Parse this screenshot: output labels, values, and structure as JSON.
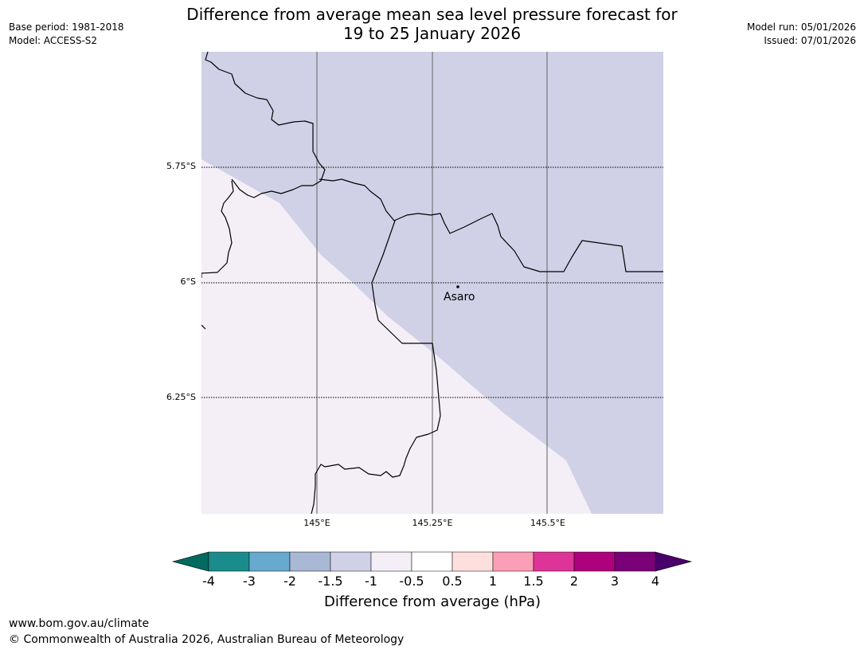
{
  "title_line1": "Difference from average mean sea level pressure forecast for",
  "title_line2": "19 to 25 January 2026",
  "base_period": "Base period: 1981-2018",
  "model": "Model: ACCESS-S2",
  "model_run": "Model run: 05/01/2026",
  "issued": "Issued: 07/01/2026",
  "lat_labels": [
    "5.75°S",
    "6°S",
    "6.25°S"
  ],
  "lon_labels": [
    "145°E",
    "145.25°E",
    "145.5°E"
  ],
  "place": {
    "name": "Asaro"
  },
  "colorbar": {
    "ticks": [
      "-4",
      "-3",
      "-2",
      "-1.5",
      "-1",
      "-0.5",
      "0.5",
      "1",
      "1.5",
      "2",
      "3",
      "4"
    ],
    "colors": [
      "#1a8c8c",
      "#67a9cf",
      "#a9b8d4",
      "#d0d1e6",
      "#f4eef6",
      "#ffffff",
      "#fde0dd",
      "#fa9fb5",
      "#dd3497",
      "#ae017e",
      "#7a0177"
    ],
    "under_color": "#04695f",
    "over_color": "#49006a",
    "label": "Difference from average (hPa)"
  },
  "map_colors": {
    "minus_1_to_minus_0_5": "#f4eef6",
    "minus_1_5_to_minus_1": "#d0d1e6"
  },
  "footer_url": "www.bom.gov.au/climate",
  "footer_copyright": "© Commonwealth of Australia 2026, Australian Bureau of Meteorology"
}
